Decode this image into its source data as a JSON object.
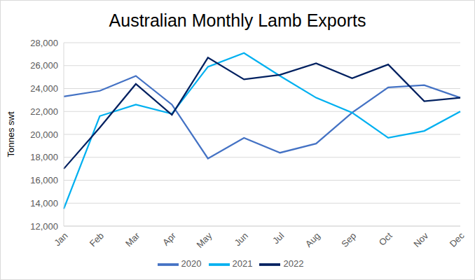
{
  "chart_data": {
    "type": "line",
    "title": "Australian Monthly Lamb Exports",
    "y_label": "Tonnes swt",
    "categories": [
      "Jan",
      "Feb",
      "Mar",
      "Apr",
      "May",
      "Jun",
      "Jul",
      "Aug",
      "Sep",
      "Oct",
      "Nov",
      "Dec"
    ],
    "series": [
      {
        "name": "2020",
        "color": "#4472c4",
        "values": [
          23300,
          23800,
          25100,
          22600,
          17900,
          19700,
          18400,
          19200,
          21900,
          24100,
          24300,
          23200
        ]
      },
      {
        "name": "2021",
        "color": "#00b0f0",
        "values": [
          13500,
          21600,
          22600,
          21800,
          25900,
          27100,
          25100,
          23200,
          21900,
          19700,
          20300,
          22000
        ]
      },
      {
        "name": "2022",
        "color": "#002060",
        "values": [
          17000,
          20600,
          24400,
          21700,
          26700,
          24800,
          25200,
          26200,
          24900,
          26100,
          22900,
          23200
        ]
      }
    ],
    "ylim": [
      12000,
      28000
    ],
    "yticks": [
      {
        "value": 12000,
        "label": "12,000"
      },
      {
        "value": 14000,
        "label": "14,000"
      },
      {
        "value": 16000,
        "label": "16,000"
      },
      {
        "value": 18000,
        "label": "18,000"
      },
      {
        "value": 20000,
        "label": "20,000"
      },
      {
        "value": 22000,
        "label": "22,000"
      },
      {
        "value": 24000,
        "label": "24,000"
      },
      {
        "value": 26000,
        "label": "26,000"
      },
      {
        "value": 28000,
        "label": "28,000"
      }
    ],
    "grid": true,
    "legend": "bottom"
  }
}
